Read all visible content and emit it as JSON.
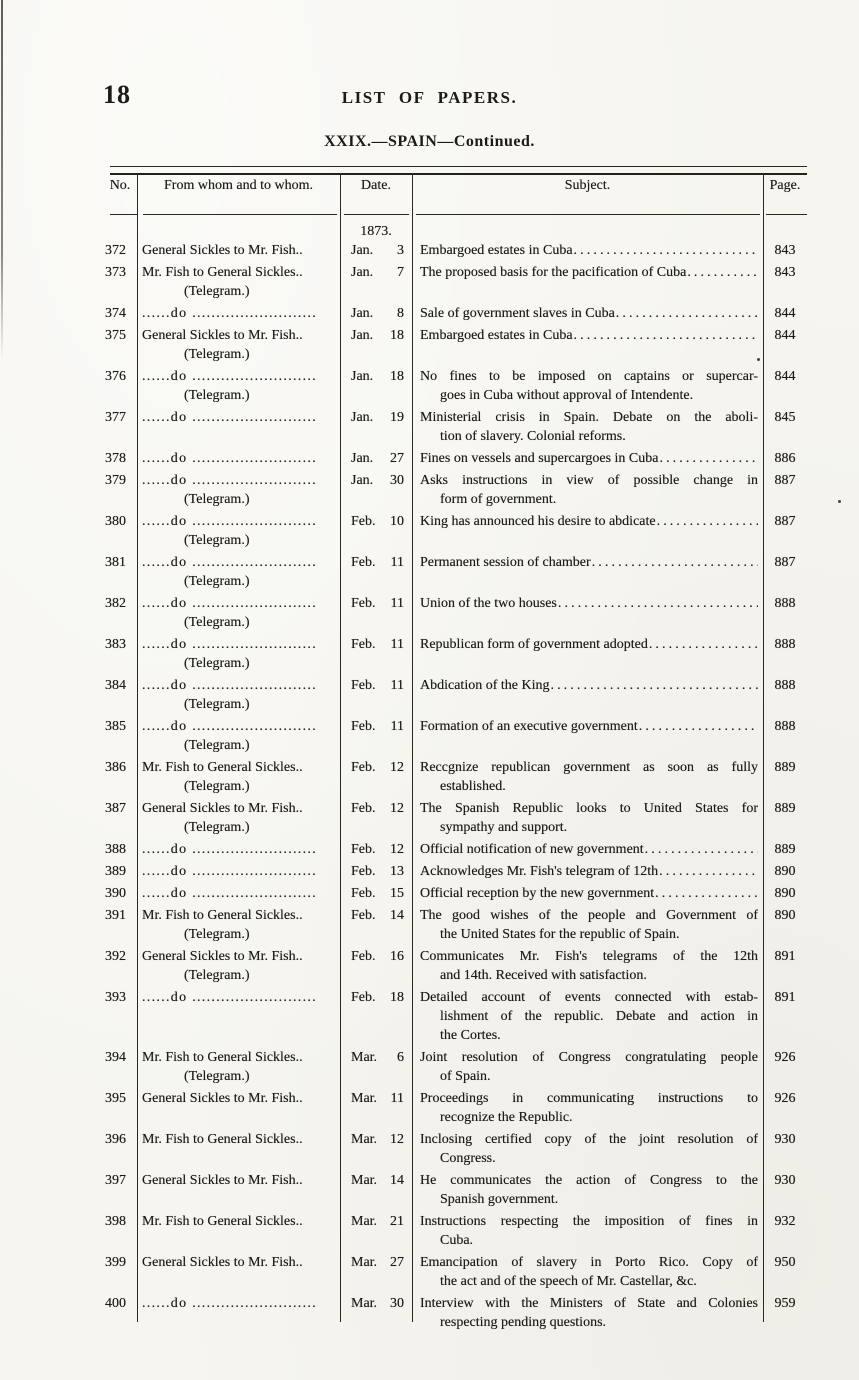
{
  "page": {
    "folio": "18",
    "title": "LIST OF PAPERS.",
    "subtitle": "XXIX.—SPAIN—Continued."
  },
  "table": {
    "columns": [
      "No.",
      "From whom and to whom.",
      "Date.",
      "Subject.",
      "Page."
    ],
    "year_label": "1873.",
    "leader_dots": "......................................................",
    "rows": [
      {
        "no": "372",
        "from": "General Sickles to Mr. Fish..",
        "from_do": false,
        "from_note": "",
        "month": "Jan.",
        "day": "3",
        "subject_lines": [
          "Embargoed estates in Cuba"
        ],
        "leader": true,
        "page": "843"
      },
      {
        "no": "373",
        "from": "Mr. Fish to General Sickles..",
        "from_do": false,
        "from_note": "(Telegram.)",
        "month": "Jan.",
        "day": "7",
        "subject_lines": [
          "The proposed basis for the pacification of Cuba"
        ],
        "leader": true,
        "page": "843"
      },
      {
        "no": "374",
        "from": "......do ..........................",
        "from_do": true,
        "from_note": "",
        "month": "Jan.",
        "day": "8",
        "subject_lines": [
          "Sale of government slaves in Cuba "
        ],
        "leader": true,
        "page": "844"
      },
      {
        "no": "375",
        "from": "General Sickles to Mr. Fish..",
        "from_do": false,
        "from_note": "(Telegram.)",
        "month": "Jan.",
        "day": "18",
        "subject_lines": [
          "Embargoed estates in Cuba"
        ],
        "leader": true,
        "page": "844"
      },
      {
        "no": "376",
        "from": "......do ..........................",
        "from_do": true,
        "from_note": "(Telegram.)",
        "month": "Jan.",
        "day": "18",
        "subject_lines": [
          "No fines to be imposed on captains or supercar-",
          "goes in Cuba without approval of Intendente."
        ],
        "leader": false,
        "page": "844"
      },
      {
        "no": "377",
        "from": "......do ..........................",
        "from_do": true,
        "from_note": "",
        "month": "Jan.",
        "day": "19",
        "subject_lines": [
          "Ministerial crisis in Spain.  Debate on the aboli-",
          "tion of slavery.  Colonial reforms."
        ],
        "leader": false,
        "page": "845"
      },
      {
        "no": "378",
        "from": "......do ..........................",
        "from_do": true,
        "from_note": "",
        "month": "Jan.",
        "day": "27",
        "subject_lines": [
          "Fines on vessels and supercargoes in Cuba "
        ],
        "leader": true,
        "page": "886"
      },
      {
        "no": "379",
        "from": "......do ..........................",
        "from_do": true,
        "from_note": "(Telegram.)",
        "month": "Jan.",
        "day": "30",
        "subject_lines": [
          "Asks instructions in view of possible change in",
          "form of government."
        ],
        "leader": false,
        "page": "887"
      },
      {
        "no": "380",
        "from": "......do ..........................",
        "from_do": true,
        "from_note": "(Telegram.)",
        "month": "Feb.",
        "day": "10",
        "subject_lines": [
          "King has announced his desire to abdicate "
        ],
        "leader": true,
        "page": "887"
      },
      {
        "no": "381",
        "from": "......do ..........................",
        "from_do": true,
        "from_note": "(Telegram.)",
        "month": "Feb.",
        "day": "11",
        "subject_lines": [
          "Permanent session of chamber"
        ],
        "leader": true,
        "page": "887"
      },
      {
        "no": "382",
        "from": "......do ..........................",
        "from_do": true,
        "from_note": "(Telegram.)",
        "month": "Feb.",
        "day": "11",
        "subject_lines": [
          "Union of the two houses "
        ],
        "leader": true,
        "page": "888"
      },
      {
        "no": "383",
        "from": "......do ..........................",
        "from_do": true,
        "from_note": "(Telegram.)",
        "month": "Feb.",
        "day": "11",
        "subject_lines": [
          "Republican form of government adopted "
        ],
        "leader": true,
        "page": "888"
      },
      {
        "no": "384",
        "from": "......do ..........................",
        "from_do": true,
        "from_note": "(Telegram.)",
        "month": "Feb.",
        "day": "11",
        "subject_lines": [
          "Abdication of the King "
        ],
        "leader": true,
        "page": "888"
      },
      {
        "no": "385",
        "from": "......do ..........................",
        "from_do": true,
        "from_note": "(Telegram.)",
        "month": "Feb.",
        "day": "11",
        "subject_lines": [
          "Formation of an executive government"
        ],
        "leader": true,
        "page": "888"
      },
      {
        "no": "386",
        "from": "Mr. Fish to General Sickles..",
        "from_do": false,
        "from_note": "(Telegram.)",
        "month": "Feb.",
        "day": "12",
        "subject_lines": [
          "Reccgnize republican government as soon as fully",
          "established."
        ],
        "leader": false,
        "page": "889"
      },
      {
        "no": "387",
        "from": "General Sickles to Mr. Fish..",
        "from_do": false,
        "from_note": "(Telegram.)",
        "month": "Feb.",
        "day": "12",
        "subject_lines": [
          "The Spanish Republic looks to United States for",
          "sympathy and support."
        ],
        "leader": false,
        "page": "889"
      },
      {
        "no": "388",
        "from": "......do ..........................",
        "from_do": true,
        "from_note": "",
        "month": "Feb.",
        "day": "12",
        "subject_lines": [
          "Official notification of new government"
        ],
        "leader": true,
        "page": "889"
      },
      {
        "no": "389",
        "from": "......do ..........................",
        "from_do": true,
        "from_note": "",
        "month": "Feb.",
        "day": "13",
        "subject_lines": [
          "Acknowledges Mr. Fish's telegram of 12th "
        ],
        "leader": true,
        "page": "890"
      },
      {
        "no": "390",
        "from": "......do ..........................",
        "from_do": true,
        "from_note": "",
        "month": "Feb.",
        "day": "15",
        "subject_lines": [
          "Official reception by the new government"
        ],
        "leader": true,
        "page": "890"
      },
      {
        "no": "391",
        "from": "Mr. Fish to General Sickles..",
        "from_do": false,
        "from_note": "(Telegram.)",
        "month": "Feb.",
        "day": "14",
        "subject_lines": [
          "The good wishes of the people and Government of",
          "the United States for the republic of Spain."
        ],
        "leader": false,
        "page": "890"
      },
      {
        "no": "392",
        "from": "General Sickles to Mr. Fish..",
        "from_do": false,
        "from_note": "(Telegram.)",
        "month": "Feb.",
        "day": "16",
        "subject_lines": [
          "Communicates Mr. Fish's telegrams of the 12th",
          "and 14th.  Received with satisfaction."
        ],
        "leader": false,
        "page": "891"
      },
      {
        "no": "393",
        "from": "......do ..........................",
        "from_do": true,
        "from_note": "",
        "month": "Feb.",
        "day": "18",
        "subject_lines": [
          "Detailed account of events connected with estab-",
          "lishment of the republic.  Debate and action in",
          "the Cortes."
        ],
        "leader": false,
        "page": "891"
      },
      {
        "no": "394",
        "from": "Mr. Fish to General Sickles..",
        "from_do": false,
        "from_note": "(Telegram.)",
        "month": "Mar.",
        "day": "6",
        "subject_lines": [
          "Joint resolution of Congress congratulating people",
          "of Spain."
        ],
        "leader": false,
        "page": "926"
      },
      {
        "no": "395",
        "from": "General Sickles to Mr. Fish..",
        "from_do": false,
        "from_note": "",
        "month": "Mar.",
        "day": "11",
        "subject_lines": [
          "Proceedings in communicating instructions to",
          "recognize the Republic."
        ],
        "leader": false,
        "page": "926"
      },
      {
        "no": "396",
        "from": "Mr. Fish to General Sickles..",
        "from_do": false,
        "from_note": "",
        "month": "Mar.",
        "day": "12",
        "subject_lines": [
          "Inclosing certified copy of the joint resolution of",
          "Congress."
        ],
        "leader": false,
        "page": "930"
      },
      {
        "no": "397",
        "from": "General Sickles to Mr. Fish..",
        "from_do": false,
        "from_note": "",
        "month": "Mar.",
        "day": "14",
        "subject_lines": [
          "He communicates the action of Congress to the",
          "Spanish government."
        ],
        "leader": false,
        "page": "930"
      },
      {
        "no": "398",
        "from": "Mr. Fish to General Sickles..",
        "from_do": false,
        "from_note": "",
        "month": "Mar.",
        "day": "21",
        "subject_lines": [
          "Instructions respecting the imposition of fines in",
          "Cuba."
        ],
        "leader": false,
        "page": "932"
      },
      {
        "no": "399",
        "from": "General Sickles to Mr. Fish..",
        "from_do": false,
        "from_note": "",
        "month": "Mar.",
        "day": "27",
        "subject_lines": [
          "Emancipation of slavery in Porto Rico.  Copy of",
          "the act and of the speech of Mr. Castellar, &c."
        ],
        "leader": false,
        "page": "950"
      },
      {
        "no": "400",
        "from": "......do ..........................",
        "from_do": true,
        "from_note": "",
        "month": "Mar.",
        "day": "30",
        "subject_lines": [
          "Interview with the Ministers of State and Colonies",
          "respecting pending questions."
        ],
        "leader": false,
        "page": "959"
      }
    ]
  }
}
